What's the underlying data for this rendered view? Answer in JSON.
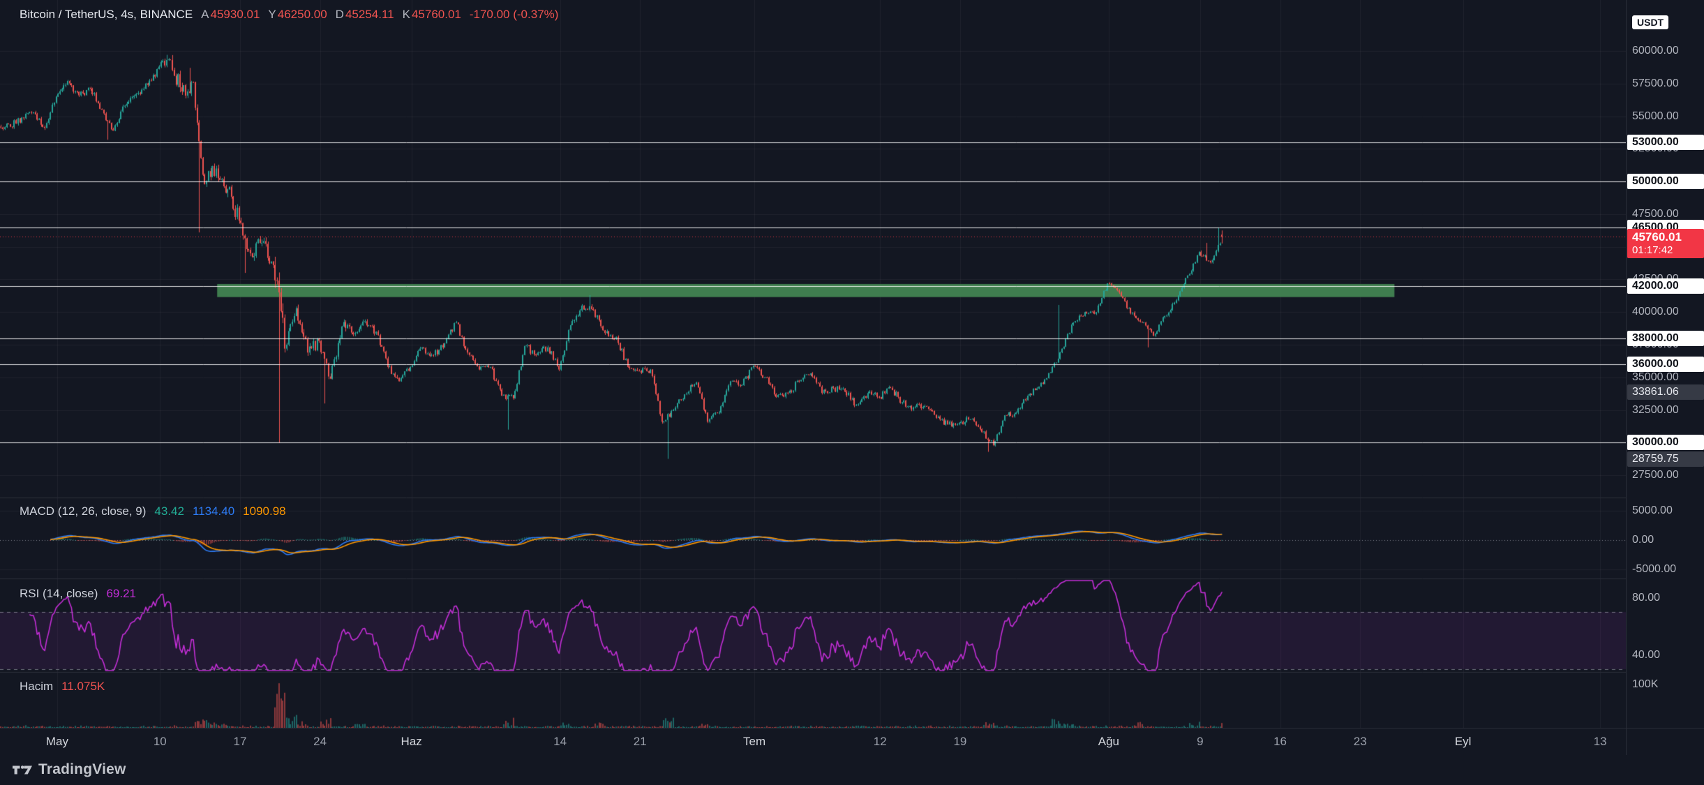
{
  "header": {
    "symbol": "Bitcoin / TetherUS, 4s, BINANCE",
    "ohlc": [
      {
        "label": "A",
        "value": "45930.01"
      },
      {
        "label": "Y",
        "value": "46250.00"
      },
      {
        "label": "D",
        "value": "45254.11"
      },
      {
        "label": "K",
        "value": "45760.01"
      }
    ],
    "change": "-170.00 (-0.37%)"
  },
  "price_axis": {
    "unit_label": "USDT",
    "range_high": 63900,
    "range_low": 25800,
    "ticks": [
      60000,
      57500,
      55000,
      52500,
      50000,
      47500,
      45000,
      42500,
      40000,
      37500,
      35000,
      32500,
      30000,
      27500
    ],
    "line_tags": [
      53000,
      50000,
      46500,
      42000,
      38000,
      36000,
      30000
    ],
    "dark_tags": [
      "33861.06",
      "28759.75"
    ],
    "dark_tag_values": [
      33861.06,
      28759.75
    ],
    "last_price": "45760.01",
    "countdown": "01:17:42"
  },
  "macd_pane": {
    "title": "MACD (12, 26, close, 9)",
    "hist_value": "43.42",
    "macd_value": "1134.40",
    "signal_value": "1090.98",
    "tick_labels": [
      "5000.00",
      "0.00",
      "-5000.00"
    ],
    "tick_values": [
      5000,
      0,
      -5000
    ],
    "range_high": 7150,
    "range_low": -6550
  },
  "rsi_pane": {
    "title": "RSI (14, close)",
    "value": "69.21",
    "tick_labels": [
      "80.00",
      "40.00"
    ],
    "tick_values": [
      80,
      40
    ],
    "band_levels": [
      70,
      30
    ],
    "range_high": 93,
    "range_low": 28.1
  },
  "volume_pane": {
    "title": "Hacim",
    "value": "11.075K",
    "tick_label": "100K",
    "tick_value": 100000
  },
  "time_axis": {
    "labels": [
      {
        "text": "May",
        "day": 5,
        "major": true
      },
      {
        "text": "10",
        "day": 14,
        "major": false
      },
      {
        "text": "17",
        "day": 21,
        "major": false
      },
      {
        "text": "24",
        "day": 28,
        "major": false
      },
      {
        "text": "Haz",
        "day": 36,
        "major": true
      },
      {
        "text": "14",
        "day": 49,
        "major": false
      },
      {
        "text": "21",
        "day": 56,
        "major": false
      },
      {
        "text": "Tem",
        "day": 66,
        "major": true
      },
      {
        "text": "12",
        "day": 77,
        "major": false
      },
      {
        "text": "19",
        "day": 84,
        "major": false
      },
      {
        "text": "Ağu",
        "day": 97,
        "major": true
      },
      {
        "text": "9",
        "day": 105,
        "major": false
      },
      {
        "text": "16",
        "day": 112,
        "major": false
      },
      {
        "text": "23",
        "day": 119,
        "major": false
      },
      {
        "text": "Eyl",
        "day": 128,
        "major": true
      },
      {
        "text": "13",
        "day": 140,
        "major": false
      }
    ]
  },
  "drawings": {
    "zone": {
      "price_top": 42150,
      "price_bottom": 41150,
      "day_start": 19,
      "day_end": 122,
      "color": "rgba(70,140,85,0.88)"
    },
    "h_lines": [
      53000,
      50000,
      46500,
      42000,
      38000,
      36000,
      30000
    ]
  },
  "chart_data": {
    "type": "candlestick",
    "interval": "4h",
    "candles_per_day": 6,
    "price_range_visible": [
      25800,
      63900
    ],
    "daily_closes": [
      54200,
      54900,
      55300,
      54100,
      56500,
      57700,
      56600,
      57100,
      55500,
      53900,
      55800,
      56700,
      57400,
      58800,
      59300,
      56900,
      57600,
      49800,
      51000,
      49400,
      47000,
      44500,
      45300,
      43600,
      37200,
      40300,
      36900,
      37800,
      34900,
      38900,
      38300,
      39300,
      38500,
      35800,
      34700,
      35800,
      37300,
      36700,
      37600,
      39200,
      36900,
      35600,
      35800,
      33600,
      33400,
      37400,
      36700,
      37300,
      35600,
      39000,
      40500,
      40200,
      38400,
      38100,
      35800,
      35500,
      35600,
      31600,
      32500,
      33700,
      34600,
      31600,
      32300,
      34700,
      34400,
      35900,
      35000,
      33500,
      33800,
      34700,
      35300,
      33800,
      34200,
      33900,
      32900,
      33800,
      33500,
      34200,
      33100,
      32700,
      32800,
      31900,
      31400,
      31500,
      31800,
      30800,
      29800,
      32100,
      32300,
      33600,
      34300,
      35400,
      37200,
      39200,
      40000,
      40000,
      42200,
      41500,
      39900,
      39200,
      38200,
      39700,
      40900,
      42800,
      44600,
      43800,
      45760
    ],
    "special_lows": {
      "9": 53200,
      "17": 46100,
      "21": 43000,
      "24": 30000,
      "28": 33000,
      "44": 31000,
      "58": 28759.75,
      "86": 29300,
      "100": 37300
    },
    "special_highs": {
      "14": 59700,
      "16": 58700,
      "51": 41300,
      "92": 40550,
      "105": 45300,
      "106": 46454
    },
    "volume_spike_days": {
      "17": 9,
      "18": 4,
      "19": 3,
      "24": 24,
      "25": 8,
      "26": 4,
      "28": 5,
      "31": 3,
      "44": 4,
      "49": 3,
      "52": 3,
      "58": 6,
      "61": 3,
      "86": 4,
      "92": 6,
      "93": 3,
      "99": 3,
      "104": 3
    },
    "volume_last": 11075,
    "last_candle": {
      "open": 45930.01,
      "high": 46250.0,
      "low": 45254.11,
      "close": 45760.01,
      "change": -170.0,
      "change_pct": -0.37
    }
  },
  "colors": {
    "bg": "#131722",
    "grid": "rgba(255,255,255,0.05)",
    "separator": "#2a2e39",
    "up": "#26a69a",
    "down": "#ef5350",
    "macd_line": "#2d7bf4",
    "signal_line": "#ff9800",
    "rsi_line": "#c32ed6",
    "rsi_band_fill": "rgba(150,40,180,0.12)",
    "white_line": "rgba(255,255,255,0.88)",
    "tag_red": "#f23645",
    "axis_text": "#b2b5be"
  },
  "branding": {
    "logo_text": "TradingView"
  }
}
